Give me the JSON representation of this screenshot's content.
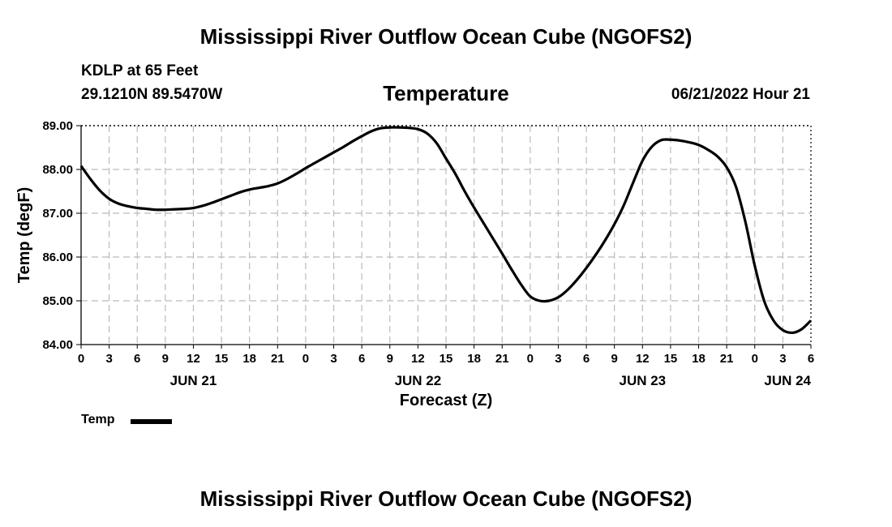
{
  "page_title": "Mississippi River Outflow Ocean Cube (NGOFS2)",
  "footer_title": "Mississippi River Outflow Ocean Cube (NGOFS2)",
  "station": "KDLP at 65 Feet",
  "coords": "29.1210N  89.5470W",
  "datetime": "06/21/2022 Hour 21",
  "chart_data": {
    "type": "line",
    "title": "Temperature",
    "xlabel": "Forecast (Z)",
    "ylabel": "Temp (degF)",
    "ylim": [
      84.0,
      89.0
    ],
    "xlim": [
      0,
      78
    ],
    "y_ticks": [
      "84.00",
      "85.00",
      "86.00",
      "87.00",
      "88.00",
      "89.00"
    ],
    "x_ticks": [
      "0",
      "3",
      "6",
      "9",
      "12",
      "15",
      "18",
      "21",
      "0",
      "3",
      "6",
      "9",
      "12",
      "15",
      "18",
      "21",
      "0",
      "3",
      "6",
      "9",
      "12",
      "15",
      "18",
      "21",
      "0",
      "3",
      "6"
    ],
    "day_labels": [
      {
        "label": "JUN 21",
        "at": 12
      },
      {
        "label": "JUN 22",
        "at": 36
      },
      {
        "label": "JUN 23",
        "at": 60
      },
      {
        "label": "JUN 24",
        "at": 78
      }
    ],
    "grid": true,
    "legend": "bottom-left",
    "series": [
      {
        "name": "Temp",
        "color": "#000000",
        "x": [
          0,
          1,
          2,
          3,
          4,
          5,
          6,
          7,
          8,
          9,
          10,
          11,
          12,
          13,
          14,
          15,
          16,
          17,
          18,
          19,
          20,
          21,
          22,
          23,
          24,
          25,
          26,
          27,
          28,
          29,
          30,
          31,
          32,
          33,
          34,
          35,
          36,
          37,
          38,
          39,
          40,
          41,
          42,
          43,
          44,
          45,
          46,
          47,
          48,
          49,
          50,
          51,
          52,
          53,
          54,
          55,
          56,
          57,
          58,
          59,
          60,
          61,
          62,
          63,
          64,
          65,
          66,
          67,
          68,
          69,
          70,
          71,
          72,
          73,
          74,
          75,
          76,
          77,
          78
        ],
        "values": [
          88.08,
          87.78,
          87.52,
          87.33,
          87.22,
          87.16,
          87.12,
          87.1,
          87.08,
          87.08,
          87.09,
          87.1,
          87.12,
          87.17,
          87.24,
          87.32,
          87.4,
          87.48,
          87.54,
          87.58,
          87.62,
          87.68,
          87.78,
          87.9,
          88.03,
          88.15,
          88.27,
          88.39,
          88.51,
          88.64,
          88.76,
          88.87,
          88.94,
          88.96,
          88.96,
          88.95,
          88.92,
          88.82,
          88.6,
          88.25,
          87.9,
          87.5,
          87.13,
          86.78,
          86.43,
          86.08,
          85.72,
          85.38,
          85.1,
          85.0,
          85.0,
          85.08,
          85.25,
          85.48,
          85.75,
          86.05,
          86.38,
          86.75,
          87.18,
          87.7,
          88.2,
          88.52,
          88.67,
          88.68,
          88.66,
          88.62,
          88.56,
          88.45,
          88.3,
          88.05,
          87.6,
          86.8,
          85.8,
          85.0,
          84.55,
          84.33,
          84.27,
          84.35,
          84.55
        ]
      }
    ]
  }
}
